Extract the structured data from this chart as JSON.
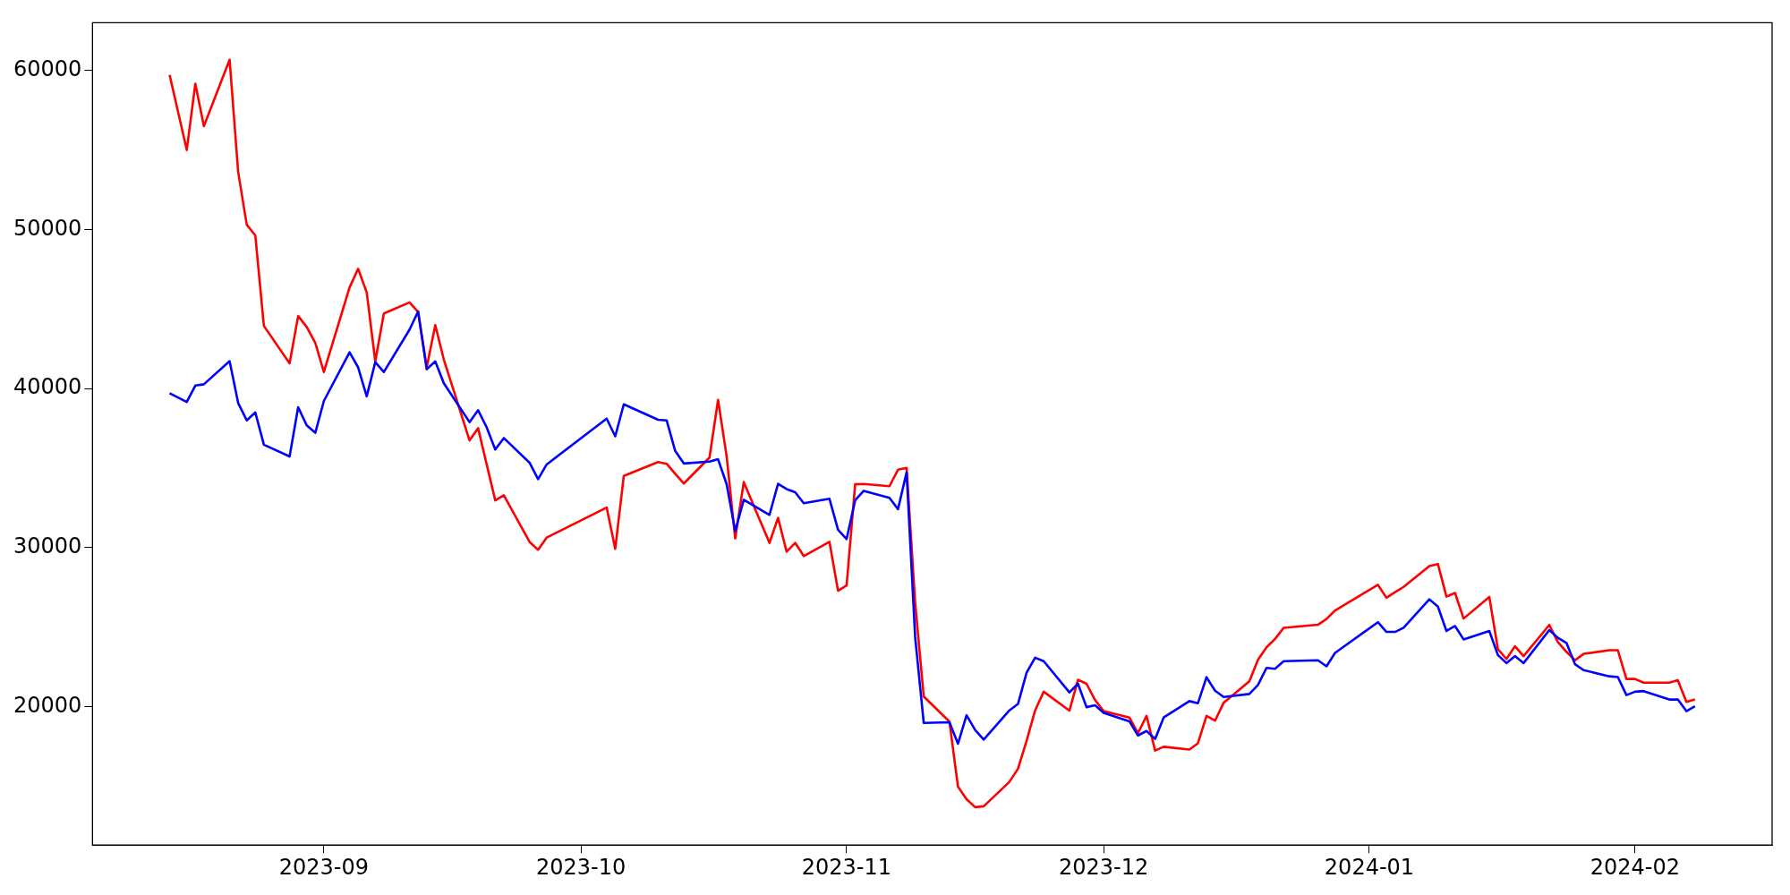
{
  "chart_data": {
    "type": "line",
    "x": [
      "2023-08-14",
      "2023-08-16",
      "2023-08-17",
      "2023-08-18",
      "2023-08-21",
      "2023-08-22",
      "2023-08-23",
      "2023-08-24",
      "2023-08-25",
      "2023-08-28",
      "2023-08-29",
      "2023-08-30",
      "2023-08-31",
      "2023-09-01",
      "2023-09-04",
      "2023-09-05",
      "2023-09-06",
      "2023-09-07",
      "2023-09-08",
      "2023-09-11",
      "2023-09-12",
      "2023-09-13",
      "2023-09-14",
      "2023-09-15",
      "2023-09-18",
      "2023-09-19",
      "2023-09-20",
      "2023-09-21",
      "2023-09-22",
      "2023-09-25",
      "2023-09-26",
      "2023-09-27",
      "2023-10-04",
      "2023-10-05",
      "2023-10-06",
      "2023-10-10",
      "2023-10-11",
      "2023-10-12",
      "2023-10-13",
      "2023-10-16",
      "2023-10-17",
      "2023-10-18",
      "2023-10-19",
      "2023-10-20",
      "2023-10-23",
      "2023-10-24",
      "2023-10-25",
      "2023-10-26",
      "2023-10-27",
      "2023-10-30",
      "2023-10-31",
      "2023-11-01",
      "2023-11-02",
      "2023-11-03",
      "2023-11-06",
      "2023-11-07",
      "2023-11-08",
      "2023-11-09",
      "2023-11-10",
      "2023-11-13",
      "2023-11-14",
      "2023-11-15",
      "2023-11-16",
      "2023-11-17",
      "2023-11-20",
      "2023-11-21",
      "2023-11-22",
      "2023-11-23",
      "2023-11-24",
      "2023-11-27",
      "2023-11-28",
      "2023-11-29",
      "2023-11-30",
      "2023-12-01",
      "2023-12-04",
      "2023-12-05",
      "2023-12-06",
      "2023-12-07",
      "2023-12-08",
      "2023-12-11",
      "2023-12-12",
      "2023-12-13",
      "2023-12-14",
      "2023-12-15",
      "2023-12-18",
      "2023-12-19",
      "2023-12-20",
      "2023-12-21",
      "2023-12-22",
      "2023-12-26",
      "2023-12-27",
      "2023-12-28",
      "2024-01-02",
      "2024-01-03",
      "2024-01-04",
      "2024-01-05",
      "2024-01-08",
      "2024-01-09",
      "2024-01-10",
      "2024-01-11",
      "2024-01-12",
      "2024-01-15",
      "2024-01-16",
      "2024-01-17",
      "2024-01-18",
      "2024-01-19",
      "2024-01-22",
      "2024-01-23",
      "2024-01-24",
      "2024-01-25",
      "2024-01-26",
      "2024-01-29",
      "2024-01-30",
      "2024-01-31",
      "2024-02-01",
      "2024-02-02",
      "2024-02-05",
      "2024-02-06",
      "2024-02-07",
      "2024-02-08"
    ],
    "series": [
      {
        "color": "#ff0000",
        "values": [
          59720,
          55000,
          59160,
          56500,
          60670,
          53620,
          50300,
          49630,
          43940,
          41590,
          44560,
          43870,
          42870,
          41040,
          46360,
          47530,
          46040,
          41710,
          44720,
          45420,
          44810,
          41330,
          43990,
          41820,
          36740,
          37510,
          35230,
          32970,
          33290,
          30360,
          29860,
          30630,
          32520,
          29930,
          34510,
          35380,
          35270,
          34640,
          34030,
          35660,
          39290,
          35750,
          30580,
          34120,
          30300,
          31870,
          29750,
          30300,
          29470,
          30360,
          27290,
          27620,
          33990,
          34000,
          33860,
          34900,
          35010,
          26540,
          20640,
          19060,
          14970,
          14180,
          13680,
          13740,
          15270,
          16100,
          17840,
          19770,
          20940,
          19750,
          21690,
          21440,
          20410,
          19720,
          19320,
          18330,
          19420,
          17240,
          17480,
          17300,
          17700,
          19420,
          19120,
          20250,
          21600,
          22940,
          23730,
          24260,
          24960,
          25150,
          25510,
          26050,
          27660,
          26850,
          27200,
          27530,
          28840,
          28970,
          26920,
          27150,
          25540,
          26900,
          23620,
          23000,
          23800,
          23180,
          25140,
          24060,
          23450,
          22920,
          23320,
          23550,
          23550,
          21740,
          21740,
          21510,
          21510,
          21660,
          20300,
          20460
        ]
      },
      {
        "color": "#0000ff",
        "values": [
          39710,
          39160,
          40190,
          40270,
          41720,
          39090,
          38000,
          38500,
          36470,
          35730,
          38830,
          37690,
          37220,
          39220,
          42280,
          41330,
          39510,
          41660,
          41040,
          43710,
          44850,
          41210,
          41710,
          40330,
          37890,
          38640,
          37560,
          36170,
          36890,
          35340,
          34300,
          35230,
          38110,
          37000,
          39010,
          38040,
          38000,
          36080,
          35290,
          35410,
          35560,
          33990,
          31040,
          33010,
          32060,
          34010,
          33680,
          33480,
          32790,
          33070,
          31130,
          30540,
          32980,
          33570,
          33130,
          32420,
          34730,
          24370,
          18980,
          19020,
          17670,
          19460,
          18530,
          17930,
          19770,
          20170,
          22130,
          23080,
          22860,
          20900,
          21440,
          19970,
          20090,
          19610,
          19080,
          18190,
          18470,
          17970,
          19320,
          20350,
          20220,
          21850,
          21000,
          20610,
          20800,
          21360,
          22440,
          22380,
          22860,
          22920,
          22540,
          23380,
          25310,
          24700,
          24700,
          24960,
          26750,
          26290,
          24760,
          25070,
          24230,
          24760,
          23250,
          22740,
          23180,
          22740,
          24820,
          24330,
          24010,
          22670,
          22300,
          21910,
          21860,
          20730,
          20940,
          20980,
          20450,
          20450,
          19720,
          20020
        ]
      }
    ],
    "xlim": [
      "2023-08-05",
      "2024-02-17"
    ],
    "xticks": [
      {
        "value": "2023-09-01",
        "label": "2023-09"
      },
      {
        "value": "2023-10-01",
        "label": "2023-10"
      },
      {
        "value": "2023-11-01",
        "label": "2023-11"
      },
      {
        "value": "2023-12-01",
        "label": "2023-12"
      },
      {
        "value": "2024-01-01",
        "label": "2024-01"
      },
      {
        "value": "2024-02-01",
        "label": "2024-02"
      }
    ],
    "ylim": [
      11300,
      63000
    ],
    "yticks": [
      20000,
      30000,
      40000,
      50000,
      60000
    ],
    "grid": false,
    "legend": false,
    "marker": "none",
    "line_style": "solid"
  }
}
